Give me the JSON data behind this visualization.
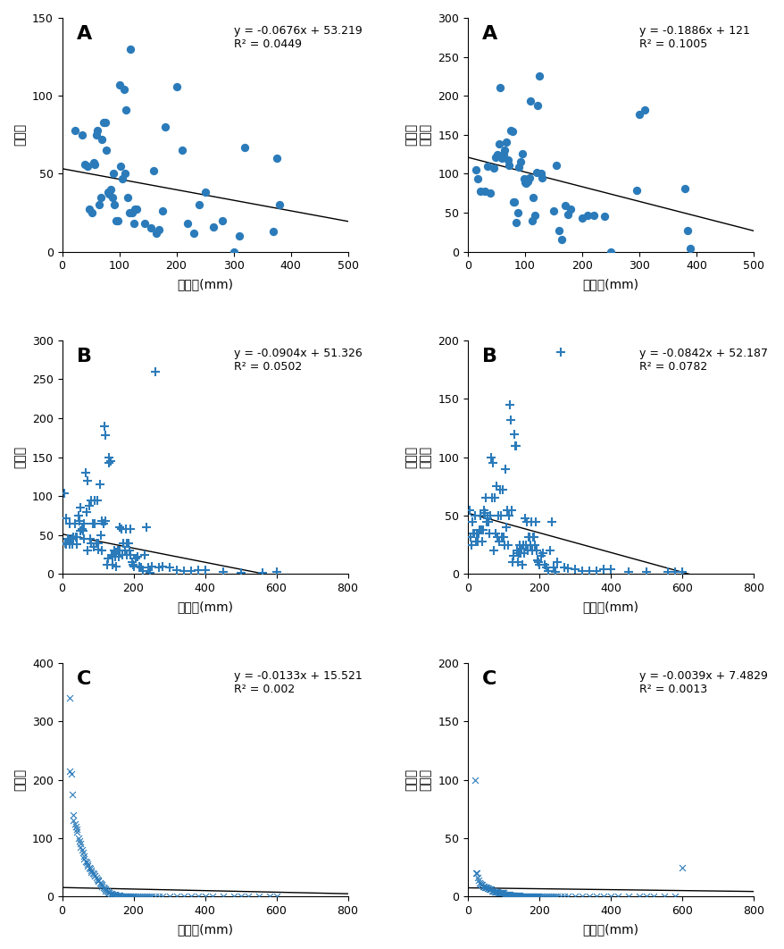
{
  "panels": [
    {
      "label": "A",
      "marker": "o",
      "color": "#2b7bba",
      "equation": "y = -0.0676x + 53.219",
      "r2": "R² = 0.0449",
      "slope": -0.0676,
      "intercept": 53.219,
      "xlim": [
        0,
        500
      ],
      "ylim": [
        0,
        150
      ],
      "xticks": [
        0,
        100,
        200,
        300,
        400,
        500
      ],
      "yticks": [
        0,
        50,
        100,
        150
      ],
      "ylabel": "발생수",
      "xlabel": "강수량(mm)",
      "x": [
        22,
        35,
        40,
        45,
        48,
        52,
        55,
        57,
        60,
        62,
        65,
        68,
        70,
        72,
        75,
        78,
        80,
        82,
        85,
        88,
        90,
        92,
        95,
        98,
        100,
        102,
        105,
        108,
        110,
        112,
        115,
        118,
        120,
        122,
        125,
        128,
        130,
        145,
        155,
        160,
        165,
        170,
        175,
        180,
        200,
        210,
        220,
        230,
        240,
        250,
        265,
        280,
        300,
        310,
        320,
        370,
        375,
        380
      ],
      "y": [
        78,
        75,
        56,
        55,
        27,
        25,
        57,
        56,
        75,
        78,
        30,
        35,
        72,
        83,
        83,
        65,
        38,
        37,
        40,
        35,
        50,
        30,
        20,
        20,
        107,
        55,
        47,
        104,
        50,
        91,
        35,
        25,
        130,
        25,
        18,
        27,
        27,
        18,
        15,
        52,
        12,
        14,
        26,
        80,
        106,
        65,
        18,
        12,
        30,
        38,
        16,
        20,
        0,
        10,
        67,
        13,
        60,
        30
      ]
    },
    {
      "label": "A",
      "marker": "o",
      "color": "#2b7bba",
      "equation": "y = -0.1886x + 121",
      "r2": "R² = 0.1005",
      "slope": -0.1886,
      "intercept": 121,
      "xlim": [
        0,
        500
      ],
      "ylim": [
        0,
        300
      ],
      "xticks": [
        0,
        100,
        200,
        300,
        400,
        500
      ],
      "yticks": [
        0,
        50,
        100,
        150,
        200,
        250,
        300
      ],
      "ylabel": "만명당\n발생률",
      "xlabel": "강수량(mm)",
      "x": [
        15,
        18,
        22,
        30,
        35,
        40,
        45,
        48,
        52,
        55,
        57,
        60,
        62,
        65,
        68,
        70,
        72,
        75,
        78,
        80,
        82,
        85,
        88,
        90,
        92,
        95,
        98,
        100,
        102,
        105,
        108,
        110,
        112,
        115,
        118,
        120,
        122,
        125,
        128,
        130,
        150,
        155,
        160,
        165,
        170,
        175,
        180,
        200,
        210,
        220,
        240,
        250,
        295,
        300,
        310,
        380,
        385,
        390
      ],
      "y": [
        105,
        94,
        78,
        77,
        110,
        75,
        107,
        121,
        124,
        138,
        211,
        120,
        125,
        130,
        141,
        118,
        111,
        155,
        154,
        64,
        64,
        37,
        50,
        109,
        115,
        126,
        94,
        89,
        88,
        90,
        95,
        193,
        40,
        69,
        47,
        101,
        188,
        225,
        100,
        95,
        52,
        111,
        27,
        15,
        59,
        48,
        55,
        43,
        46,
        47,
        45,
        0,
        79,
        176,
        182,
        81,
        27,
        4
      ]
    },
    {
      "label": "B",
      "marker": "+",
      "color": "#2b7bba",
      "equation": "y = -0.0904x + 51.326",
      "r2": "R² = 0.0502",
      "slope": -0.0904,
      "intercept": 51.326,
      "xlim": [
        0,
        800
      ],
      "ylim": [
        0,
        300
      ],
      "xticks": [
        0,
        200,
        400,
        600,
        800
      ],
      "yticks": [
        0,
        50,
        100,
        150,
        200,
        250,
        300
      ],
      "ylabel": "발생수",
      "xlabel": "강수량(mm)",
      "x": [
        5,
        8,
        10,
        12,
        15,
        18,
        20,
        22,
        25,
        28,
        30,
        32,
        35,
        38,
        40,
        42,
        45,
        48,
        50,
        52,
        55,
        58,
        60,
        62,
        65,
        68,
        70,
        72,
        75,
        78,
        80,
        82,
        85,
        88,
        90,
        92,
        95,
        98,
        100,
        102,
        105,
        108,
        110,
        112,
        115,
        118,
        120,
        122,
        125,
        128,
        130,
        132,
        135,
        138,
        140,
        142,
        145,
        148,
        150,
        152,
        155,
        158,
        160,
        162,
        165,
        168,
        170,
        172,
        175,
        178,
        180,
        182,
        185,
        188,
        190,
        192,
        195,
        198,
        200,
        205,
        210,
        215,
        220,
        225,
        230,
        235,
        240,
        245,
        250,
        260,
        270,
        280,
        300,
        320,
        340,
        360,
        380,
        400,
        450,
        500,
        560,
        600
      ],
      "y": [
        104,
        40,
        38,
        72,
        45,
        45,
        65,
        38,
        45,
        38,
        45,
        48,
        65,
        48,
        38,
        48,
        75,
        68,
        85,
        55,
        58,
        55,
        45,
        65,
        130,
        80,
        120,
        30,
        88,
        45,
        94,
        40,
        65,
        35,
        95,
        65,
        40,
        95,
        40,
        32,
        115,
        50,
        68,
        30,
        65,
        190,
        178,
        68,
        12,
        20,
        150,
        143,
        145,
        25,
        12,
        22,
        30,
        22,
        28,
        10,
        30,
        22,
        60,
        30,
        58,
        25,
        40,
        40,
        30,
        58,
        25,
        40,
        40,
        30,
        58,
        25,
        15,
        12,
        10,
        20,
        22,
        10,
        8,
        4,
        25,
        60,
        8,
        2,
        10,
        260,
        8,
        10,
        8,
        5,
        4,
        4,
        5,
        5,
        3,
        2,
        2,
        3
      ]
    },
    {
      "label": "B",
      "marker": "+",
      "color": "#2b7bba",
      "equation": "y = -0.0842x + 52.187",
      "r2": "R² = 0.0782",
      "slope": -0.0842,
      "intercept": 52.187,
      "xlim": [
        0,
        800
      ],
      "ylim": [
        0,
        200
      ],
      "xticks": [
        0,
        200,
        400,
        600,
        800
      ],
      "yticks": [
        0,
        50,
        100,
        150,
        200
      ],
      "ylabel": "만명당\n발생률",
      "xlabel": "강수량(mm)",
      "x": [
        5,
        8,
        10,
        12,
        15,
        18,
        20,
        22,
        25,
        28,
        30,
        32,
        35,
        38,
        40,
        42,
        45,
        48,
        50,
        52,
        55,
        58,
        60,
        62,
        65,
        68,
        70,
        72,
        75,
        78,
        80,
        82,
        85,
        88,
        90,
        92,
        95,
        98,
        100,
        102,
        105,
        108,
        110,
        112,
        115,
        118,
        120,
        122,
        125,
        128,
        130,
        132,
        135,
        138,
        140,
        142,
        145,
        148,
        150,
        152,
        155,
        158,
        160,
        162,
        165,
        168,
        170,
        172,
        175,
        178,
        180,
        182,
        185,
        188,
        190,
        192,
        195,
        198,
        200,
        205,
        210,
        215,
        220,
        225,
        230,
        235,
        240,
        245,
        250,
        260,
        270,
        280,
        300,
        320,
        340,
        360,
        380,
        400,
        450,
        500,
        560,
        580,
        600
      ],
      "y": [
        55,
        32,
        25,
        45,
        35,
        35,
        50,
        28,
        35,
        28,
        35,
        38,
        50,
        38,
        28,
        38,
        55,
        52,
        65,
        45,
        48,
        45,
        35,
        50,
        100,
        65,
        95,
        20,
        65,
        35,
        75,
        32,
        50,
        28,
        72,
        50,
        32,
        72,
        32,
        25,
        90,
        40,
        55,
        25,
        50,
        145,
        132,
        55,
        10,
        16,
        120,
        110,
        110,
        20,
        10,
        18,
        25,
        18,
        22,
        8,
        25,
        18,
        48,
        25,
        45,
        20,
        32,
        32,
        25,
        45,
        20,
        32,
        32,
        25,
        45,
        20,
        12,
        10,
        8,
        16,
        18,
        8,
        6,
        3,
        20,
        45,
        6,
        2,
        10,
        190,
        6,
        5,
        4,
        3,
        3,
        3,
        4,
        4,
        2,
        2,
        2,
        2,
        2
      ]
    },
    {
      "label": "C",
      "marker": "x",
      "color": "#2b7bba",
      "equation": "y = -0.0133x + 15.521",
      "r2": "R² = 0.002",
      "slope": -0.0133,
      "intercept": 15.521,
      "xlim": [
        0,
        800
      ],
      "ylim": [
        0,
        400
      ],
      "xticks": [
        0,
        200,
        400,
        600,
        800
      ],
      "yticks": [
        0,
        100,
        200,
        300,
        400
      ],
      "ylabel": "발생수",
      "xlabel": "강수량(mm)",
      "x": [
        20,
        22,
        25,
        28,
        30,
        32,
        35,
        38,
        40,
        42,
        45,
        48,
        50,
        52,
        55,
        58,
        60,
        62,
        65,
        68,
        70,
        72,
        75,
        78,
        80,
        82,
        85,
        88,
        90,
        92,
        95,
        98,
        100,
        102,
        105,
        108,
        110,
        112,
        115,
        118,
        120,
        122,
        125,
        128,
        130,
        132,
        135,
        138,
        140,
        142,
        145,
        148,
        150,
        152,
        155,
        158,
        160,
        162,
        165,
        168,
        170,
        172,
        175,
        178,
        180,
        182,
        185,
        188,
        190,
        192,
        195,
        198,
        200,
        205,
        210,
        215,
        220,
        225,
        230,
        235,
        240,
        245,
        250,
        260,
        270,
        280,
        300,
        320,
        340,
        360,
        380,
        400,
        420,
        450,
        480,
        500,
        520,
        550,
        580,
        600
      ],
      "y": [
        340,
        215,
        210,
        175,
        140,
        130,
        125,
        120,
        115,
        110,
        100,
        95,
        90,
        85,
        80,
        75,
        70,
        65,
        60,
        58,
        55,
        52,
        50,
        48,
        45,
        42,
        40,
        38,
        36,
        35,
        32,
        30,
        28,
        26,
        24,
        22,
        20,
        18,
        16,
        14,
        12,
        10,
        9,
        8,
        7,
        6,
        5,
        5,
        4,
        4,
        3,
        3,
        2,
        2,
        2,
        2,
        2,
        2,
        1,
        1,
        1,
        1,
        1,
        1,
        1,
        1,
        1,
        1,
        1,
        0,
        0,
        0,
        0,
        0,
        0,
        0,
        0,
        0,
        0,
        0,
        0,
        0,
        0,
        0,
        0,
        0,
        0,
        0,
        0,
        0,
        0,
        0,
        0,
        0,
        0,
        0,
        0,
        0,
        0,
        0
      ]
    },
    {
      "label": "C",
      "marker": "x",
      "color": "#2b7bba",
      "equation": "y = -0.0039x + 7.4829",
      "r2": "R² = 0.0013",
      "slope": -0.0039,
      "intercept": 7.4829,
      "xlim": [
        0,
        800
      ],
      "ylim": [
        0,
        200
      ],
      "xticks": [
        0,
        200,
        400,
        600,
        800
      ],
      "yticks": [
        0,
        50,
        100,
        150,
        200
      ],
      "ylabel": "만명당\n발생률",
      "xlabel": "강수량(mm)",
      "x": [
        20,
        22,
        25,
        28,
        30,
        32,
        35,
        38,
        40,
        42,
        45,
        48,
        50,
        52,
        55,
        58,
        60,
        62,
        65,
        68,
        70,
        72,
        75,
        78,
        80,
        82,
        85,
        88,
        90,
        92,
        95,
        98,
        100,
        102,
        105,
        108,
        110,
        112,
        115,
        118,
        120,
        122,
        125,
        128,
        130,
        132,
        135,
        138,
        140,
        142,
        145,
        148,
        150,
        152,
        155,
        158,
        160,
        162,
        165,
        168,
        170,
        172,
        175,
        178,
        180,
        182,
        185,
        188,
        190,
        192,
        195,
        198,
        200,
        205,
        210,
        215,
        220,
        225,
        230,
        235,
        240,
        245,
        250,
        260,
        270,
        280,
        300,
        320,
        340,
        360,
        380,
        400,
        420,
        450,
        480,
        500,
        520,
        550,
        580,
        600
      ],
      "y": [
        100,
        20,
        20,
        16,
        14,
        12,
        11,
        10,
        10,
        9,
        9,
        8,
        8,
        8,
        7,
        7,
        6,
        6,
        6,
        5,
        5,
        5,
        4,
        4,
        4,
        4,
        3,
        3,
        3,
        3,
        3,
        3,
        3,
        2,
        2,
        2,
        2,
        2,
        2,
        2,
        1,
        1,
        1,
        1,
        1,
        1,
        1,
        1,
        1,
        1,
        1,
        0,
        0,
        0,
        0,
        0,
        0,
        0,
        0,
        0,
        0,
        0,
        0,
        0,
        0,
        0,
        0,
        0,
        0,
        0,
        0,
        0,
        0,
        0,
        0,
        0,
        0,
        0,
        0,
        0,
        0,
        0,
        0,
        0,
        0,
        0,
        0,
        0,
        0,
        0,
        0,
        0,
        0,
        0,
        0,
        0,
        0,
        0,
        0,
        25
      ]
    }
  ]
}
